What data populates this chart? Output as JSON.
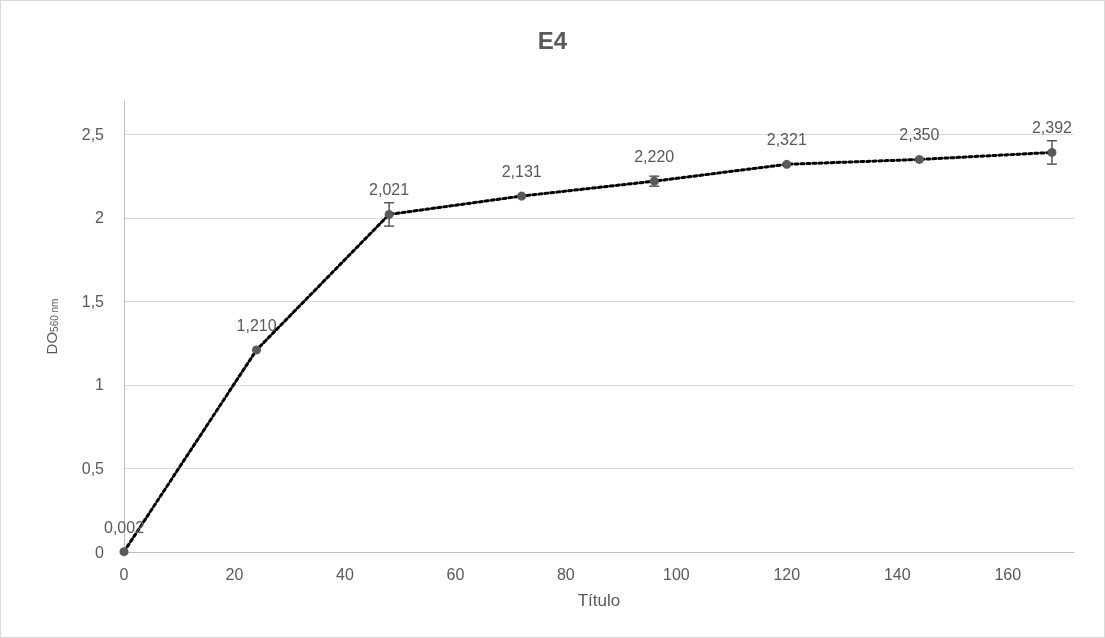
{
  "chart_data": {
    "type": "line",
    "title": "E4",
    "xlabel": "Título",
    "ylabel": "DO$_{560 nm}$",
    "x": [
      0,
      24,
      48,
      72,
      96,
      120,
      144,
      168
    ],
    "series": [
      {
        "color": "#000000",
        "values": [
          0.002,
          1.21,
          2.021,
          2.131,
          2.22,
          2.321,
          2.35,
          2.392
        ],
        "errors": [
          null,
          null,
          0.07,
          null,
          0.03,
          null,
          null,
          0.07
        ],
        "value_labels": [
          "0,002",
          "1,210",
          "2,021",
          "2,131",
          "2,220",
          "2,321",
          "2,350",
          "2,392"
        ]
      }
    ],
    "marker": "circle",
    "line_style": "dotted",
    "grid": "y",
    "xlim": [
      0,
      172
    ],
    "xticks": [
      0,
      20,
      40,
      60,
      80,
      100,
      120,
      140,
      160
    ],
    "ylim": [
      0,
      2.7
    ],
    "yticks": [
      0,
      {
        "value": 0.5,
        "label": "0,5"
      },
      1,
      {
        "value": 1.5,
        "label": "1,5"
      },
      2,
      {
        "value": 2.5,
        "label": "2,5"
      }
    ]
  }
}
